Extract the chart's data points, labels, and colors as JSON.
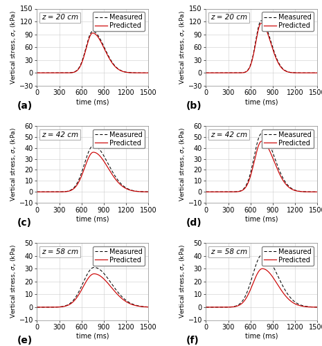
{
  "subplots": [
    {
      "label": "(a)",
      "annotation": "z = 20 cm",
      "ylim": [
        -30,
        150
      ],
      "yticks": [
        -30,
        0,
        30,
        60,
        90,
        120,
        150
      ],
      "peak_measured": 97,
      "peak_predicted": 93,
      "peak_time": 750,
      "wl_measured": 90,
      "wr_measured": 160,
      "wl_predicted": 88,
      "wr_predicted": 158
    },
    {
      "label": "(b)",
      "annotation": "z = 20 cm",
      "ylim": [
        -30,
        150
      ],
      "yticks": [
        -30,
        0,
        30,
        60,
        90,
        120,
        150
      ],
      "peak_measured": 122,
      "peak_predicted": 116,
      "peak_time": 745,
      "wl_measured": 75,
      "wr_measured": 130,
      "wl_predicted": 74,
      "wr_predicted": 128
    },
    {
      "label": "(c)",
      "annotation": "z = 42 cm",
      "ylim": [
        -10,
        60
      ],
      "yticks": [
        -10,
        0,
        10,
        20,
        30,
        40,
        50,
        60
      ],
      "peak_measured": 42,
      "peak_predicted": 36,
      "peak_time": 760,
      "wl_measured": 120,
      "wr_measured": 200,
      "wl_predicted": 118,
      "wr_predicted": 198
    },
    {
      "label": "(d)",
      "annotation": "z = 42 cm",
      "ylim": [
        -10,
        60
      ],
      "yticks": [
        -10,
        0,
        10,
        20,
        30,
        40,
        50,
        60
      ],
      "peak_measured": 53,
      "peak_predicted": 46,
      "peak_time": 750,
      "wl_measured": 100,
      "wr_measured": 170,
      "wl_predicted": 98,
      "wr_predicted": 168
    },
    {
      "label": "(e)",
      "annotation": "z = 58 cm",
      "ylim": [
        -10,
        50
      ],
      "yticks": [
        -10,
        0,
        10,
        20,
        30,
        40,
        50
      ],
      "peak_measured": 31,
      "peak_predicted": 26,
      "peak_time": 770,
      "wl_measured": 150,
      "wr_measured": 230,
      "wl_predicted": 148,
      "wr_predicted": 228
    },
    {
      "label": "(f)",
      "annotation": "z = 58 cm",
      "ylim": [
        -10,
        50
      ],
      "yticks": [
        -10,
        0,
        10,
        20,
        30,
        40,
        50
      ],
      "peak_measured": 41,
      "peak_predicted": 30,
      "peak_time": 760,
      "wl_measured": 130,
      "wr_measured": 205,
      "wl_predicted": 128,
      "wr_predicted": 200
    }
  ],
  "xlim": [
    0,
    1500
  ],
  "xticks": [
    0,
    300,
    600,
    900,
    1200,
    1500
  ],
  "xlabel": "time (ms)",
  "ylabel": "Vertical stress, σv (kPa)",
  "measured_color": "#000000",
  "predicted_color": "#cc0000",
  "grid_color": "#cccccc",
  "background_color": "#ffffff",
  "label_fontsize": 9,
  "tick_fontsize": 7,
  "annotation_fontsize": 7.5,
  "legend_fontsize": 7
}
